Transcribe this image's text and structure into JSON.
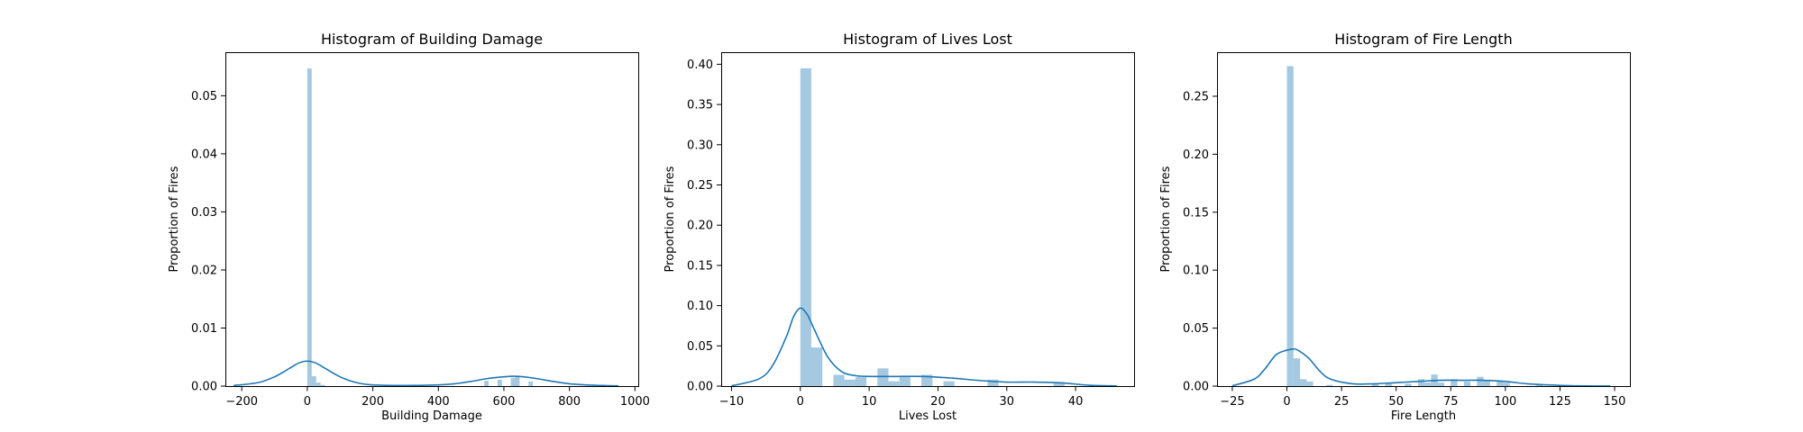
{
  "chart_data": [
    {
      "type": "histogram",
      "title": "Histogram of Building Damage",
      "xlabel": "Building Damage",
      "ylabel": "Proportion of Fires",
      "xlim": [
        -250,
        1010
      ],
      "ylim": [
        0,
        0.0575
      ],
      "xticks": [
        -200,
        0,
        200,
        400,
        600,
        800,
        1000
      ],
      "yticks": [
        0.0,
        0.01,
        0.02,
        0.03,
        0.04,
        0.05
      ],
      "ytick_labels": [
        "0.00",
        "0.01",
        "0.02",
        "0.03",
        "0.04",
        "0.05"
      ],
      "bin_width": 13.5,
      "bins": [
        {
          "x": 0,
          "y": 0.0547
        },
        {
          "x": 13.5,
          "y": 0.0017
        },
        {
          "x": 27,
          "y": 0.0006
        },
        {
          "x": 40.5,
          "y": 0.0002
        },
        {
          "x": 540,
          "y": 0.0009
        },
        {
          "x": 580.5,
          "y": 0.0011
        },
        {
          "x": 621,
          "y": 0.0014
        },
        {
          "x": 634.5,
          "y": 0.0017
        },
        {
          "x": 675,
          "y": 0.0008
        }
      ],
      "kde": {
        "x": [
          -225,
          -150,
          -100,
          -50,
          -25,
          0,
          25,
          50,
          100,
          150,
          200,
          300,
          400,
          450,
          500,
          550,
          600,
          630,
          660,
          700,
          750,
          800,
          850,
          900,
          950
        ],
        "y": [
          0.0001,
          0.0006,
          0.0016,
          0.0032,
          0.004,
          0.0043,
          0.004,
          0.0032,
          0.0016,
          0.0006,
          0.0002,
          0.0001,
          0.0002,
          0.0004,
          0.0008,
          0.0013,
          0.0016,
          0.0017,
          0.0016,
          0.0013,
          0.0008,
          0.0004,
          0.0002,
          0.0001,
          3e-05
        ]
      }
    },
    {
      "type": "histogram",
      "title": "Histogram of Lives Lost",
      "xlabel": "Lives Lost",
      "ylabel": "Proportion of Fires",
      "xlim": [
        -11.5,
        48.5
      ],
      "ylim": [
        0,
        0.415
      ],
      "xticks": [
        -10,
        0,
        10,
        20,
        30,
        40
      ],
      "yticks": [
        0.0,
        0.05,
        0.1,
        0.15,
        0.2,
        0.25,
        0.3,
        0.35,
        0.4
      ],
      "ytick_labels": [
        "0.00",
        "0.05",
        "0.10",
        "0.15",
        "0.20",
        "0.25",
        "0.30",
        "0.35",
        "0.40"
      ],
      "bin_width": 1.6,
      "bins": [
        {
          "x": 0,
          "y": 0.395
        },
        {
          "x": 1.6,
          "y": 0.048
        },
        {
          "x": 4.8,
          "y": 0.014
        },
        {
          "x": 6.4,
          "y": 0.008
        },
        {
          "x": 8.0,
          "y": 0.011
        },
        {
          "x": 11.2,
          "y": 0.022
        },
        {
          "x": 12.8,
          "y": 0.006
        },
        {
          "x": 14.4,
          "y": 0.011
        },
        {
          "x": 17.6,
          "y": 0.014
        },
        {
          "x": 20.8,
          "y": 0.006
        },
        {
          "x": 27.2,
          "y": 0.008
        },
        {
          "x": 36.8,
          "y": 0.005
        }
      ],
      "kde": {
        "x": [
          -10,
          -6,
          -4,
          -2,
          -1,
          0,
          1,
          2,
          4,
          6,
          8,
          10,
          14,
          18,
          22,
          26,
          30,
          34,
          38,
          42,
          46
        ],
        "y": [
          0.0003,
          0.009,
          0.026,
          0.062,
          0.086,
          0.097,
          0.089,
          0.071,
          0.036,
          0.018,
          0.013,
          0.012,
          0.012,
          0.012,
          0.01,
          0.007,
          0.005,
          0.005,
          0.004,
          0.001,
          0.0002
        ]
      }
    },
    {
      "type": "histogram",
      "title": "Histogram of Fire Length",
      "xlabel": "Fire Length",
      "ylabel": "Proportion of Fires",
      "xlim": [
        -32,
        157
      ],
      "ylim": [
        0,
        0.288
      ],
      "xticks": [
        -25,
        0,
        25,
        50,
        75,
        100,
        125,
        150
      ],
      "yticks": [
        0.0,
        0.05,
        0.1,
        0.15,
        0.2,
        0.25
      ],
      "ytick_labels": [
        "0.00",
        "0.05",
        "0.10",
        "0.15",
        "0.20",
        "0.25"
      ],
      "bin_width": 3.0,
      "bins": [
        {
          "x": 0,
          "y": 0.276
        },
        {
          "x": 3,
          "y": 0.024
        },
        {
          "x": 6,
          "y": 0.006
        },
        {
          "x": 9,
          "y": 0.004
        },
        {
          "x": 18,
          "y": 0.001
        },
        {
          "x": 39,
          "y": 0.002
        },
        {
          "x": 45,
          "y": 0.002
        },
        {
          "x": 54,
          "y": 0.002
        },
        {
          "x": 60,
          "y": 0.006
        },
        {
          "x": 63,
          "y": 0.003
        },
        {
          "x": 66,
          "y": 0.01
        },
        {
          "x": 69,
          "y": 0.003
        },
        {
          "x": 75,
          "y": 0.006
        },
        {
          "x": 81,
          "y": 0.004
        },
        {
          "x": 87,
          "y": 0.008
        },
        {
          "x": 90,
          "y": 0.005
        },
        {
          "x": 96,
          "y": 0.004
        },
        {
          "x": 99,
          "y": 0.003
        },
        {
          "x": 114,
          "y": 0.002
        }
      ],
      "kde": {
        "x": [
          -25,
          -15,
          -10,
          -5,
          0,
          3,
          5,
          10,
          15,
          20,
          30,
          40,
          50,
          60,
          70,
          80,
          90,
          100,
          110,
          120,
          130,
          140,
          148
        ],
        "y": [
          0.0003,
          0.006,
          0.015,
          0.027,
          0.031,
          0.032,
          0.031,
          0.024,
          0.013,
          0.006,
          0.002,
          0.002,
          0.003,
          0.004,
          0.005,
          0.005,
          0.005,
          0.004,
          0.002,
          0.001,
          0.0003,
          0.0001,
          2e-05
        ]
      }
    }
  ]
}
